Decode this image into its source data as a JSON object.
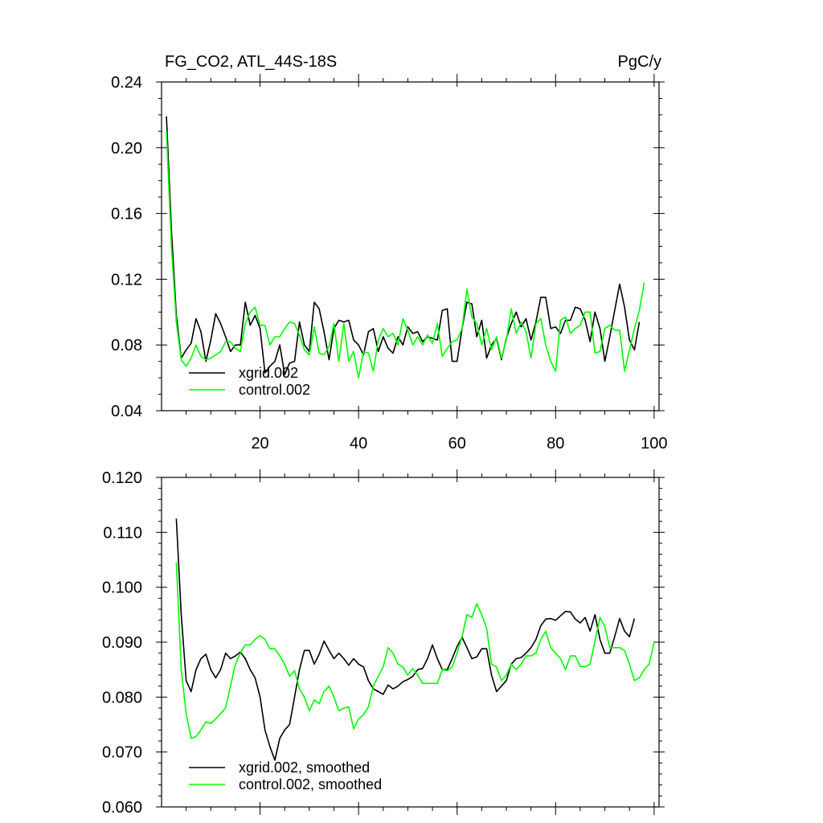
{
  "chart_data": [
    {
      "type": "line",
      "title": "FG_CO2, ATL_44S-18S",
      "units": "PgC/y",
      "xlabel": "",
      "ylabel": "",
      "xlim": [
        0,
        101
      ],
      "ylim": [
        0.04,
        0.24
      ],
      "yticks": [
        "0.04",
        "0.08",
        "0.12",
        "0.16",
        "0.20",
        "0.24"
      ],
      "xticks": [
        "20",
        "40",
        "60",
        "80",
        "100"
      ],
      "legend_position": "bottom-left",
      "series": [
        {
          "name": "xgrid.002",
          "color": "#000000",
          "values": [
            0.219,
            0.15,
            0.098,
            0.072,
            0.077,
            0.081,
            0.096,
            0.088,
            0.07,
            0.083,
            0.099,
            0.093,
            0.085,
            0.076,
            0.08,
            0.08,
            0.106,
            0.092,
            0.098,
            0.09,
            0.063,
            0.067,
            0.07,
            0.08,
            0.062,
            0.069,
            0.07,
            0.094,
            0.08,
            0.076,
            0.106,
            0.102,
            0.088,
            0.071,
            0.09,
            0.095,
            0.094,
            0.095,
            0.083,
            0.08,
            0.074,
            0.088,
            0.09,
            0.076,
            0.085,
            0.078,
            0.075,
            0.085,
            0.08,
            0.091,
            0.087,
            0.088,
            0.082,
            0.085,
            0.084,
            0.083,
            0.101,
            0.102,
            0.07,
            0.07,
            0.09,
            0.106,
            0.105,
            0.085,
            0.095,
            0.072,
            0.08,
            0.084,
            0.071,
            0.084,
            0.093,
            0.1,
            0.091,
            0.096,
            0.083,
            0.094,
            0.109,
            0.109,
            0.09,
            0.091,
            0.087,
            0.095,
            0.095,
            0.103,
            0.102,
            0.095,
            0.082,
            0.1,
            0.09,
            0.07,
            0.085,
            0.101,
            0.117,
            0.103,
            0.083,
            0.077,
            0.094
          ]
        },
        {
          "name": "control.002",
          "color": "#00ff00",
          "values": [
            0.21,
            0.14,
            0.094,
            0.071,
            0.067,
            0.072,
            0.08,
            0.073,
            0.071,
            0.072,
            0.074,
            0.076,
            0.082,
            0.082,
            0.078,
            0.076,
            0.093,
            0.1,
            0.103,
            0.092,
            0.092,
            0.08,
            0.085,
            0.085,
            0.09,
            0.094,
            0.093,
            0.086,
            0.077,
            0.074,
            0.091,
            0.075,
            0.074,
            0.079,
            0.093,
            0.07,
            0.093,
            0.07,
            0.076,
            0.06,
            0.076,
            0.075,
            0.064,
            0.083,
            0.09,
            0.085,
            0.087,
            0.08,
            0.096,
            0.089,
            0.08,
            0.085,
            0.08,
            0.086,
            0.081,
            0.093,
            0.073,
            0.078,
            0.082,
            0.083,
            0.09,
            0.114,
            0.097,
            0.093,
            0.08,
            0.09,
            0.077,
            0.085,
            0.072,
            0.083,
            0.102,
            0.087,
            0.094,
            0.088,
            0.072,
            0.093,
            0.096,
            0.08,
            0.07,
            0.064,
            0.095,
            0.097,
            0.087,
            0.09,
            0.092,
            0.1,
            0.1,
            0.075,
            0.076,
            0.09,
            0.092,
            0.089,
            0.089,
            0.064,
            0.077,
            0.09,
            0.101,
            0.118
          ]
        }
      ]
    },
    {
      "type": "line",
      "title": "",
      "xlabel": "",
      "ylabel": "",
      "xlim": [
        0,
        101
      ],
      "ylim": [
        0.06,
        0.12
      ],
      "yticks": [
        "0.060",
        "0.070",
        "0.080",
        "0.090",
        "0.100",
        "0.110",
        "0.120"
      ],
      "xticks": [],
      "legend_position": "bottom-left",
      "series": [
        {
          "name": "xgrid.002, smoothed",
          "color": "#000000",
          "x_start": 3,
          "values": [
            0.1125,
            0.095,
            0.083,
            0.081,
            0.085,
            0.087,
            0.0878,
            0.085,
            0.0835,
            0.085,
            0.088,
            0.087,
            0.0875,
            0.0882,
            0.087,
            0.085,
            0.0835,
            0.08,
            0.074,
            0.071,
            0.0685,
            0.0725,
            0.074,
            0.075,
            0.08,
            0.085,
            0.0885,
            0.0885,
            0.086,
            0.0878,
            0.0902,
            0.0885,
            0.087,
            0.088,
            0.087,
            0.0858,
            0.087,
            0.086,
            0.0855,
            0.083,
            0.0815,
            0.081,
            0.0805,
            0.0822,
            0.0815,
            0.082,
            0.0828,
            0.0832,
            0.0838,
            0.085,
            0.0852,
            0.087,
            0.0895,
            0.087,
            0.085,
            0.085,
            0.087,
            0.0892,
            0.0909,
            0.089,
            0.087,
            0.0873,
            0.0888,
            0.0888,
            0.084,
            0.081,
            0.082,
            0.083,
            0.086,
            0.087,
            0.0872,
            0.088,
            0.089,
            0.0905,
            0.093,
            0.0942,
            0.0943,
            0.094,
            0.0948,
            0.0956,
            0.0955,
            0.0942,
            0.0935,
            0.0945,
            0.092,
            0.095,
            0.0905,
            0.088,
            0.088,
            0.091,
            0.0943,
            0.092,
            0.091,
            0.0943
          ]
        },
        {
          "name": "control.002, smoothed",
          "color": "#00ff00",
          "x_start": 3,
          "values": [
            0.1045,
            0.085,
            0.077,
            0.0725,
            0.0728,
            0.074,
            0.0755,
            0.0752,
            0.076,
            0.077,
            0.078,
            0.082,
            0.086,
            0.088,
            0.0895,
            0.0895,
            0.0905,
            0.0912,
            0.0905,
            0.0888,
            0.0888,
            0.0875,
            0.086,
            0.0838,
            0.0848,
            0.0815,
            0.08,
            0.0775,
            0.0795,
            0.0788,
            0.081,
            0.082,
            0.08,
            0.0775,
            0.078,
            0.0782,
            0.0742,
            0.076,
            0.0768,
            0.0782,
            0.082,
            0.0838,
            0.0855,
            0.089,
            0.088,
            0.086,
            0.0855,
            0.084,
            0.0852,
            0.084,
            0.0825,
            0.0825,
            0.0825,
            0.0825,
            0.085,
            0.0848,
            0.0855,
            0.088,
            0.091,
            0.095,
            0.0945,
            0.097,
            0.095,
            0.0925,
            0.086,
            0.0855,
            0.083,
            0.084,
            0.086,
            0.085,
            0.086,
            0.0875,
            0.0875,
            0.088,
            0.0905,
            0.092,
            0.089,
            0.088,
            0.087,
            0.085,
            0.0875,
            0.0875,
            0.0856,
            0.0855,
            0.086,
            0.0902,
            0.0945,
            0.0928,
            0.089,
            0.089,
            0.089,
            0.0885,
            0.086,
            0.083,
            0.0835,
            0.085,
            0.086,
            0.09
          ]
        }
      ]
    }
  ]
}
